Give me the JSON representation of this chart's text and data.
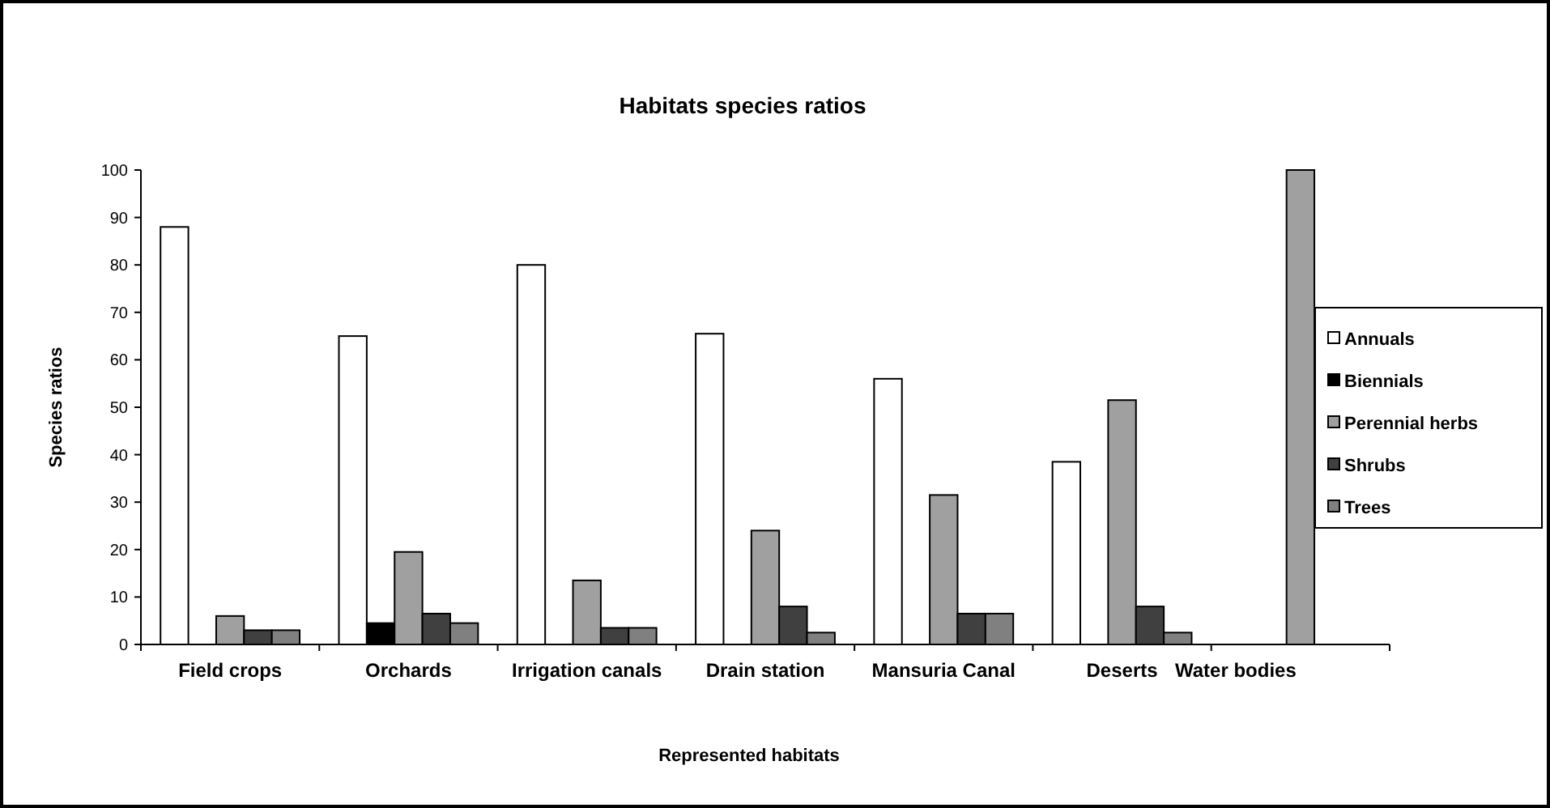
{
  "chart_data": {
    "type": "bar",
    "title": "Habitats species ratios",
    "xlabel": "Represented habitats",
    "ylabel": "Species ratios",
    "categories": [
      "Field crops",
      "Orchards",
      "Irrigation canals",
      "Drain station",
      "Mansuria Canal",
      "Deserts",
      "Water bodies"
    ],
    "series": [
      {
        "name": "Annuals",
        "color": "#ffffff",
        "values": [
          88,
          65,
          80,
          65.5,
          56,
          38.5,
          0
        ]
      },
      {
        "name": "Biennials",
        "color": "#000000",
        "values": [
          0,
          4.5,
          0,
          0,
          0,
          0,
          0
        ]
      },
      {
        "name": "Perennial herbs",
        "color": "#a0a0a0",
        "values": [
          6,
          19.5,
          13.5,
          24,
          31.5,
          51.5,
          100
        ]
      },
      {
        "name": "Shrubs",
        "color": "#404040",
        "values": [
          3,
          6.5,
          3.5,
          8,
          6.5,
          8,
          0
        ]
      },
      {
        "name": "Trees",
        "color": "#808080",
        "values": [
          3,
          4.5,
          3.5,
          2.5,
          6.5,
          2.5,
          0
        ]
      }
    ],
    "ylim": [
      0,
      100
    ],
    "yticks": [
      0,
      10,
      20,
      30,
      40,
      50,
      60,
      70,
      80,
      90,
      100
    ],
    "grid": false,
    "legend": "right"
  }
}
